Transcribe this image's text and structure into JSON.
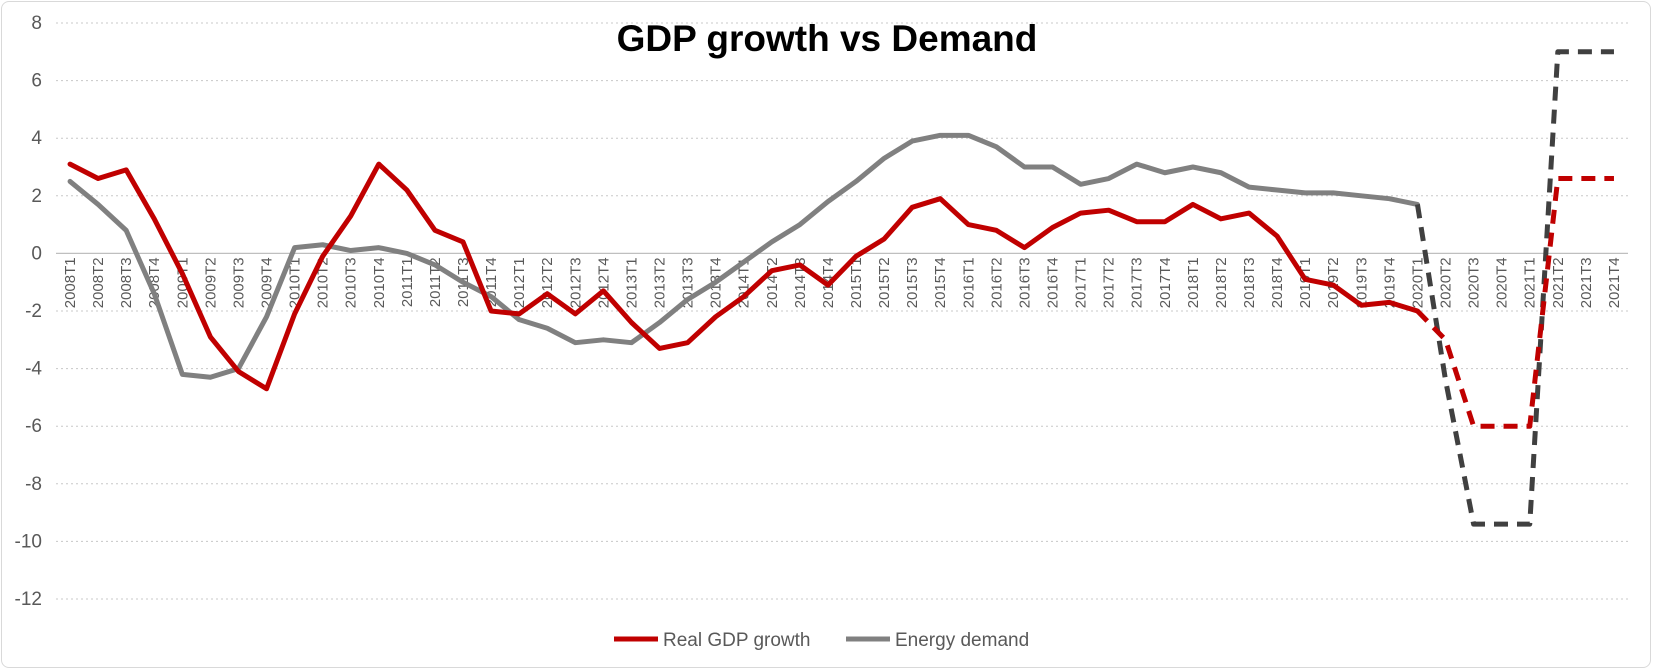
{
  "chart_data": {
    "type": "line",
    "title": "GDP growth vs Demand",
    "xlabel": "",
    "ylabel": "",
    "ylim": [
      -12,
      8
    ],
    "yticks": [
      8,
      6,
      4,
      2,
      0,
      -2,
      -4,
      -6,
      -8,
      -10,
      -12
    ],
    "grid": true,
    "legend_position": "bottom",
    "categories": [
      "2008T1",
      "2008T2",
      "2008T3",
      "2008T4",
      "2009T1",
      "2009T2",
      "2009T3",
      "2009T4",
      "2010T1",
      "2010T2",
      "2010T3",
      "2010T4",
      "2011T1",
      "2011T2",
      "2011T3",
      "2011T4",
      "2012T1",
      "2012T2",
      "2012T3",
      "2012T4",
      "2013T1",
      "2013T2",
      "2013T3",
      "2013T4",
      "2014T1",
      "2014T2",
      "2014T3",
      "2014T4",
      "2015T1",
      "2015T2",
      "2015T3",
      "2015T4",
      "2016T1",
      "2016T2",
      "2016T3",
      "2016T4",
      "2017T1",
      "2017T2",
      "2017T3",
      "2017T4",
      "2018T1",
      "2018T2",
      "2018T3",
      "2018T4",
      "2019T1",
      "2019T2",
      "2019T3",
      "2019T4",
      "2020T1",
      "2020T2",
      "2020T3",
      "2020T4",
      "2021T1",
      "2021T2",
      "2021T3",
      "2021T4"
    ],
    "series": [
      {
        "name": "Real GDP growth",
        "color": "#c00000",
        "values": [
          3.1,
          2.6,
          2.9,
          1.2,
          -0.7,
          -2.9,
          -4.1,
          -4.7,
          -2.1,
          -0.1,
          1.3,
          3.1,
          2.2,
          0.8,
          0.4,
          -2.0,
          -2.1,
          -1.4,
          -2.1,
          -1.3,
          -2.4,
          -3.3,
          -3.1,
          -2.2,
          -1.5,
          -0.6,
          -0.4,
          -1.1,
          -0.1,
          0.5,
          1.6,
          1.9,
          1.0,
          0.8,
          0.2,
          0.9,
          1.4,
          1.5,
          1.1,
          1.1,
          1.7,
          1.2,
          1.4,
          0.6,
          -0.9,
          -1.1,
          -1.8,
          -1.7,
          -2.0,
          -3.0,
          -6.0,
          -6.0,
          -6.0,
          2.6,
          2.6,
          2.6
        ],
        "actual_until_index": 48
      },
      {
        "name": "Energy demand",
        "color": "#808080",
        "forecast_color": "#404040",
        "values": [
          2.5,
          1.7,
          0.8,
          -1.4,
          -4.2,
          -4.3,
          -4.0,
          -2.2,
          0.2,
          0.3,
          0.1,
          0.2,
          0.0,
          -0.4,
          -1.0,
          -1.5,
          -2.3,
          -2.6,
          -3.1,
          -3.0,
          -3.1,
          -2.4,
          -1.6,
          -1.0,
          -0.3,
          0.4,
          1.0,
          1.8,
          2.5,
          3.3,
          3.9,
          4.1,
          4.1,
          3.7,
          3.0,
          3.0,
          2.4,
          2.6,
          3.1,
          2.8,
          3.0,
          2.8,
          2.3,
          2.2,
          2.1,
          2.1,
          2.0,
          1.9,
          1.7,
          -4.4,
          -9.4,
          -9.4,
          -9.4,
          7.0,
          7.0,
          7.0
        ],
        "actual_until_index": 48
      }
    ]
  }
}
